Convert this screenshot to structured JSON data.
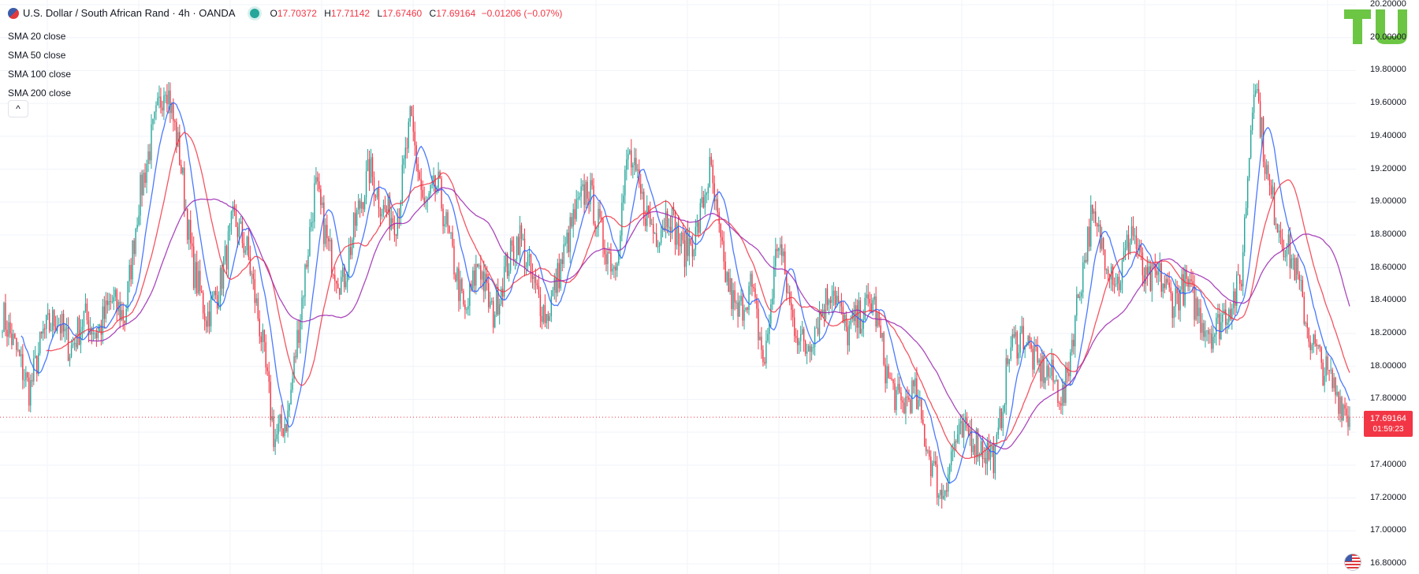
{
  "header": {
    "symbol": "U.S. Dollar / South African Rand · 4h · OANDA",
    "open_label": "O",
    "open": "17.70372",
    "high_label": "H",
    "high": "17.71142",
    "low_label": "L",
    "low": "17.67460",
    "close_label": "C",
    "close": "17.69164",
    "change": "−0.01206 (−0.07%)"
  },
  "indicators": [
    {
      "label": "SMA",
      "value": "20 close"
    },
    {
      "label": "SMA",
      "value": "50 close"
    },
    {
      "label": "SMA",
      "value": "100 close"
    },
    {
      "label": "SMA",
      "value": "200 close"
    }
  ],
  "collapse_glyph": "^",
  "price_tag": {
    "price": "17.69164",
    "countdown": "01:59:23"
  },
  "colors": {
    "up": "#26a69a",
    "down": "#f23645",
    "sma20": "#2962ff",
    "sma50": "#f23645",
    "sma100": "#9c27b0",
    "logo": "#6cc644"
  },
  "chart_data": {
    "type": "candlestick",
    "symbol": "USDZAR",
    "timeframe": "4h",
    "ylim": [
      16.8,
      20.2
    ],
    "y_ticks": [
      "20.20000",
      "20.00000",
      "19.80000",
      "19.60000",
      "19.40000",
      "19.20000",
      "19.00000",
      "18.80000",
      "18.60000",
      "18.40000",
      "18.20000",
      "18.00000",
      "17.80000",
      "17.60000",
      "17.40000",
      "17.20000",
      "17.00000",
      "16.80000"
    ],
    "last_price": 17.69164,
    "close_path": [
      18.32,
      18.1,
      17.85,
      18.2,
      18.3,
      18.1,
      18.3,
      18.2,
      18.4,
      18.3,
      19.0,
      19.4,
      19.75,
      19.3,
      18.6,
      18.3,
      18.5,
      18.9,
      18.7,
      18.2,
      17.55,
      17.7,
      18.4,
      19.1,
      18.7,
      18.5,
      18.9,
      19.2,
      18.95,
      18.9,
      19.5,
      18.95,
      19.1,
      18.7,
      18.3,
      18.65,
      18.3,
      18.6,
      18.8,
      18.5,
      18.3,
      18.6,
      18.9,
      19.1,
      18.8,
      18.6,
      19.3,
      19.0,
      18.8,
      18.95,
      18.7,
      18.8,
      19.2,
      18.6,
      18.3,
      18.5,
      18.0,
      18.8,
      18.3,
      18.1,
      18.3,
      18.5,
      18.2,
      18.3,
      18.4,
      17.95,
      17.75,
      17.85,
      17.5,
      17.2,
      17.55,
      17.6,
      17.5,
      17.45,
      18.1,
      18.2,
      18.0,
      17.95,
      17.8,
      18.4,
      18.9,
      18.7,
      18.5,
      18.85,
      18.5,
      18.55,
      18.4,
      18.5,
      18.3,
      18.2,
      18.35,
      18.5,
      19.8,
      19.1,
      18.8,
      18.6,
      18.2,
      18.0,
      17.85,
      17.69
    ],
    "series": [
      {
        "name": "SMA",
        "period": 20
      },
      {
        "name": "SMA",
        "period": 50
      },
      {
        "name": "SMA",
        "period": 100
      },
      {
        "name": "SMA",
        "period": 200
      }
    ]
  }
}
